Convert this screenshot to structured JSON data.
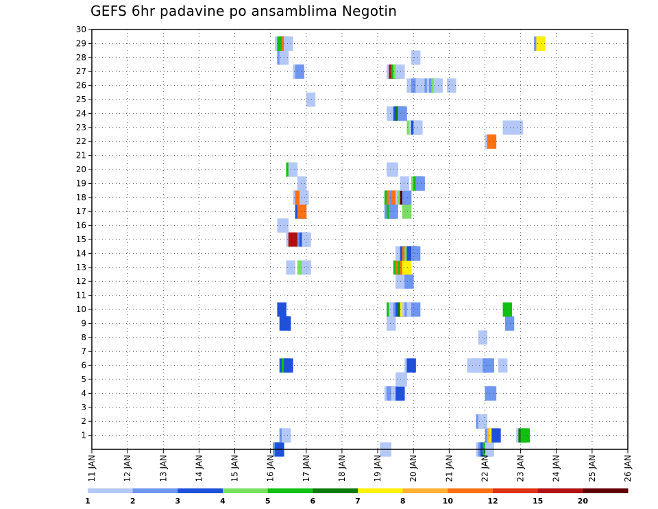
{
  "chart_data": {
    "type": "heatmap",
    "title": "GEFS 6hr padavine po ansamblima Negotin",
    "x_dates": [
      "11 JAN",
      "12 JAN",
      "13 JAN",
      "14 JAN",
      "15 JAN",
      "16 JAN",
      "17 JAN",
      "18 JAN",
      "19 JAN",
      "20 JAN",
      "21 JAN",
      "22 JAN",
      "23 JAN",
      "24 JAN",
      "25 JAN",
      "26 JAN"
    ],
    "y_ticks": [
      1,
      2,
      3,
      4,
      5,
      6,
      7,
      8,
      9,
      10,
      11,
      12,
      13,
      14,
      15,
      16,
      17,
      18,
      19,
      20,
      21,
      22,
      23,
      24,
      25,
      26,
      27,
      28,
      29,
      30
    ],
    "grid": true,
    "legend": {
      "placement": "bottom",
      "labels": [
        "1",
        "2",
        "3",
        "4",
        "5",
        "6",
        "7",
        "8",
        "10",
        "12",
        "15",
        "20"
      ],
      "colors": [
        "#b4c8f8",
        "#6e96f0",
        "#1e50dc",
        "#78e060",
        "#10c010",
        "#0a7a0a",
        "#fff000",
        "#ffb030",
        "#ff7010",
        "#e03010",
        "#b01010",
        "#600000"
      ]
    },
    "cells": [
      {
        "x": 20.25,
        "y": 0,
        "v": 2
      },
      {
        "x": 20.5,
        "y": 0,
        "v": 3
      },
      {
        "x": 32.25,
        "y": 0,
        "v": 1
      },
      {
        "x": 32.5,
        "y": 0,
        "v": 1
      },
      {
        "x": 43.0,
        "y": 0,
        "v": 1
      },
      {
        "x": 43.25,
        "y": 0,
        "v": 2
      },
      {
        "x": 43.5,
        "y": 0,
        "v": 3
      },
      {
        "x": 43.75,
        "y": 0,
        "v": 5
      },
      {
        "x": 44.0,
        "y": 0,
        "v": 1
      },
      {
        "x": 21.0,
        "y": 1,
        "v": 2
      },
      {
        "x": 21.25,
        "y": 1,
        "v": 1
      },
      {
        "x": 44.0,
        "y": 1,
        "v": 2
      },
      {
        "x": 44.25,
        "y": 1,
        "v": 8
      },
      {
        "x": 44.5,
        "y": 1,
        "v": 7
      },
      {
        "x": 44.75,
        "y": 1,
        "v": 3
      },
      {
        "x": 47.5,
        "y": 1,
        "v": 1
      },
      {
        "x": 47.75,
        "y": 1,
        "v": 6
      },
      {
        "x": 48.0,
        "y": 1,
        "v": 5
      },
      {
        "x": 43.0,
        "y": 2,
        "v": 2
      },
      {
        "x": 43.25,
        "y": 2,
        "v": 1
      },
      {
        "x": 32.75,
        "y": 4,
        "v": 1
      },
      {
        "x": 33.0,
        "y": 4,
        "v": 2
      },
      {
        "x": 33.5,
        "y": 4,
        "v": 1
      },
      {
        "x": 33.75,
        "y": 4,
        "v": 1
      },
      {
        "x": 34.0,
        "y": 4,
        "v": 3
      },
      {
        "x": 44.0,
        "y": 4,
        "v": 2
      },
      {
        "x": 44.25,
        "y": 4,
        "v": 2
      },
      {
        "x": 34.0,
        "y": 5,
        "v": 1
      },
      {
        "x": 34.25,
        "y": 5,
        "v": 1
      },
      {
        "x": 21.0,
        "y": 6,
        "v": 3
      },
      {
        "x": 21.25,
        "y": 6,
        "v": 5
      },
      {
        "x": 21.5,
        "y": 6,
        "v": 3
      },
      {
        "x": 35.0,
        "y": 6,
        "v": 1
      },
      {
        "x": 35.25,
        "y": 6,
        "v": 3
      },
      {
        "x": 42.0,
        "y": 6,
        "v": 1
      },
      {
        "x": 42.25,
        "y": 6,
        "v": 1
      },
      {
        "x": 42.5,
        "y": 6,
        "v": 1
      },
      {
        "x": 42.75,
        "y": 6,
        "v": 1
      },
      {
        "x": 43.0,
        "y": 6,
        "v": 1
      },
      {
        "x": 43.25,
        "y": 6,
        "v": 1
      },
      {
        "x": 43.75,
        "y": 6,
        "v": 2
      },
      {
        "x": 44.0,
        "y": 6,
        "v": 2
      },
      {
        "x": 45.5,
        "y": 6,
        "v": 1
      },
      {
        "x": 43.25,
        "y": 8,
        "v": 1
      },
      {
        "x": 21.0,
        "y": 9,
        "v": 3
      },
      {
        "x": 21.25,
        "y": 9,
        "v": 3
      },
      {
        "x": 33.0,
        "y": 9,
        "v": 1
      },
      {
        "x": 46.25,
        "y": 9,
        "v": 2
      },
      {
        "x": 20.75,
        "y": 10,
        "v": 3
      },
      {
        "x": 33.0,
        "y": 10,
        "v": 5
      },
      {
        "x": 33.25,
        "y": 10,
        "v": 1
      },
      {
        "x": 33.5,
        "y": 10,
        "v": 1
      },
      {
        "x": 33.75,
        "y": 10,
        "v": 2
      },
      {
        "x": 34.0,
        "y": 10,
        "v": 3
      },
      {
        "x": 34.25,
        "y": 10,
        "v": 6
      },
      {
        "x": 34.5,
        "y": 10,
        "v": 7
      },
      {
        "x": 34.75,
        "y": 10,
        "v": 1
      },
      {
        "x": 35.0,
        "y": 10,
        "v": 2
      },
      {
        "x": 35.25,
        "y": 10,
        "v": 1
      },
      {
        "x": 35.75,
        "y": 10,
        "v": 2
      },
      {
        "x": 46.0,
        "y": 10,
        "v": 5
      },
      {
        "x": 34.0,
        "y": 12,
        "v": 1
      },
      {
        "x": 34.75,
        "y": 12,
        "v": 1
      },
      {
        "x": 35.0,
        "y": 12,
        "v": 2
      },
      {
        "x": 21.75,
        "y": 13,
        "v": 1
      },
      {
        "x": 23.0,
        "y": 13,
        "v": 4
      },
      {
        "x": 23.5,
        "y": 13,
        "v": 1
      },
      {
        "x": 33.75,
        "y": 13,
        "v": 5
      },
      {
        "x": 34.0,
        "y": 13,
        "v": 10
      },
      {
        "x": 34.25,
        "y": 13,
        "v": 5
      },
      {
        "x": 34.5,
        "y": 13,
        "v": 10
      },
      {
        "x": 34.75,
        "y": 13,
        "v": 7
      },
      {
        "x": 34.0,
        "y": 14,
        "v": 1
      },
      {
        "x": 34.5,
        "y": 14,
        "v": 3
      },
      {
        "x": 34.75,
        "y": 14,
        "v": 10
      },
      {
        "x": 35.0,
        "y": 14,
        "v": 4
      },
      {
        "x": 35.25,
        "y": 14,
        "v": 3
      },
      {
        "x": 35.5,
        "y": 14,
        "v": 3
      },
      {
        "x": 35.75,
        "y": 14,
        "v": 2
      },
      {
        "x": 21.75,
        "y": 15,
        "v": 1
      },
      {
        "x": 22.0,
        "y": 15,
        "v": 15
      },
      {
        "x": 23.0,
        "y": 15,
        "v": 2
      },
      {
        "x": 23.25,
        "y": 15,
        "v": 3
      },
      {
        "x": 23.5,
        "y": 15,
        "v": 1
      },
      {
        "x": 20.75,
        "y": 16,
        "v": 1
      },
      {
        "x": 21.0,
        "y": 16,
        "v": 1
      },
      {
        "x": 22.75,
        "y": 17,
        "v": 3
      },
      {
        "x": 23.0,
        "y": 17,
        "v": 10
      },
      {
        "x": 32.75,
        "y": 17,
        "v": 2
      },
      {
        "x": 33.0,
        "y": 17,
        "v": 5
      },
      {
        "x": 33.25,
        "y": 17,
        "v": 2
      },
      {
        "x": 34.75,
        "y": 17,
        "v": 4
      },
      {
        "x": 22.5,
        "y": 18,
        "v": 1
      },
      {
        "x": 22.75,
        "y": 18,
        "v": 10
      },
      {
        "x": 23.25,
        "y": 18,
        "v": 1
      },
      {
        "x": 32.75,
        "y": 18,
        "v": 5
      },
      {
        "x": 33.0,
        "y": 18,
        "v": 10
      },
      {
        "x": 33.25,
        "y": 18,
        "v": 2
      },
      {
        "x": 33.5,
        "y": 18,
        "v": 10
      },
      {
        "x": 34.0,
        "y": 18,
        "v": 1
      },
      {
        "x": 34.25,
        "y": 18,
        "v": 4
      },
      {
        "x": 34.5,
        "y": 18,
        "v": 20
      },
      {
        "x": 34.75,
        "y": 18,
        "v": 2
      },
      {
        "x": 23.0,
        "y": 19,
        "v": 1
      },
      {
        "x": 34.5,
        "y": 19,
        "v": 1
      },
      {
        "x": 35.75,
        "y": 19,
        "v": 4
      },
      {
        "x": 36.0,
        "y": 19,
        "v": 5
      },
      {
        "x": 36.25,
        "y": 19,
        "v": 2
      },
      {
        "x": 21.75,
        "y": 20,
        "v": 5
      },
      {
        "x": 22.0,
        "y": 20,
        "v": 1
      },
      {
        "x": 33.0,
        "y": 20,
        "v": 1
      },
      {
        "x": 33.25,
        "y": 20,
        "v": 1
      },
      {
        "x": 44.0,
        "y": 22,
        "v": 1
      },
      {
        "x": 44.25,
        "y": 22,
        "v": 10
      },
      {
        "x": 35.25,
        "y": 23,
        "v": 4
      },
      {
        "x": 35.5,
        "y": 23,
        "v": 1
      },
      {
        "x": 35.75,
        "y": 23,
        "v": 3
      },
      {
        "x": 36.0,
        "y": 23,
        "v": 1
      },
      {
        "x": 46.0,
        "y": 23,
        "v": 1
      },
      {
        "x": 46.25,
        "y": 23,
        "v": 1
      },
      {
        "x": 46.5,
        "y": 23,
        "v": 1
      },
      {
        "x": 47.25,
        "y": 23,
        "v": 1
      },
      {
        "x": 33.0,
        "y": 24,
        "v": 1
      },
      {
        "x": 33.75,
        "y": 24,
        "v": 3
      },
      {
        "x": 34.0,
        "y": 24,
        "v": 6
      },
      {
        "x": 34.25,
        "y": 24,
        "v": 2
      },
      {
        "x": 24.0,
        "y": 25,
        "v": 1
      },
      {
        "x": 35.25,
        "y": 26,
        "v": 1
      },
      {
        "x": 35.5,
        "y": 26,
        "v": 1
      },
      {
        "x": 35.75,
        "y": 26,
        "v": 2
      },
      {
        "x": 36.0,
        "y": 26,
        "v": 2
      },
      {
        "x": 36.25,
        "y": 26,
        "v": 1
      },
      {
        "x": 37.0,
        "y": 26,
        "v": 1
      },
      {
        "x": 37.25,
        "y": 26,
        "v": 2
      },
      {
        "x": 37.5,
        "y": 26,
        "v": 1
      },
      {
        "x": 37.75,
        "y": 26,
        "v": 2
      },
      {
        "x": 38.0,
        "y": 26,
        "v": 4
      },
      {
        "x": 38.25,
        "y": 26,
        "v": 1
      },
      {
        "x": 39.75,
        "y": 26,
        "v": 1
      },
      {
        "x": 22.5,
        "y": 27,
        "v": 1
      },
      {
        "x": 22.75,
        "y": 27,
        "v": 2
      },
      {
        "x": 33.0,
        "y": 27,
        "v": 1
      },
      {
        "x": 33.25,
        "y": 27,
        "v": 15
      },
      {
        "x": 33.5,
        "y": 27,
        "v": 5
      },
      {
        "x": 33.75,
        "y": 27,
        "v": 4
      },
      {
        "x": 34.0,
        "y": 27,
        "v": 1
      },
      {
        "x": 20.75,
        "y": 28,
        "v": 2
      },
      {
        "x": 21.0,
        "y": 28,
        "v": 1
      },
      {
        "x": 35.75,
        "y": 28,
        "v": 1
      },
      {
        "x": 20.5,
        "y": 29,
        "v": 1
      },
      {
        "x": 20.75,
        "y": 29,
        "v": 5
      },
      {
        "x": 21.0,
        "y": 29,
        "v": 5
      },
      {
        "x": 21.25,
        "y": 29,
        "v": 10
      },
      {
        "x": 21.5,
        "y": 29,
        "v": 1
      },
      {
        "x": 49.5,
        "y": 29,
        "v": 2
      },
      {
        "x": 49.75,
        "y": 29,
        "v": 7
      }
    ]
  }
}
